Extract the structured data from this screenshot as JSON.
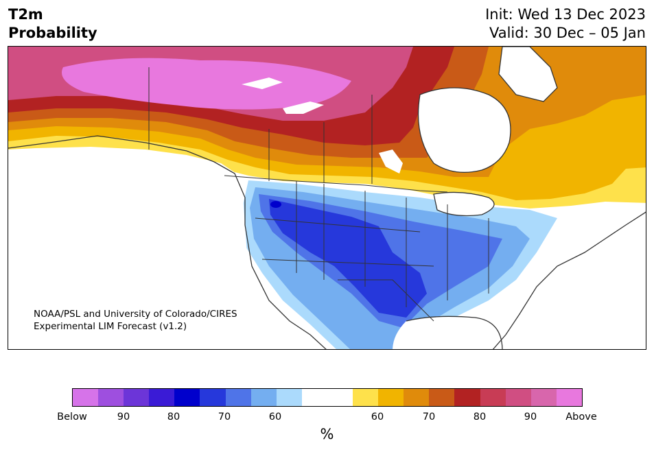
{
  "title": {
    "line1": "T2m",
    "line2": "Probability"
  },
  "dates": {
    "init": "Init: Wed 13 Dec 2023",
    "valid": "Valid: 30 Dec – 05 Jan"
  },
  "credit": {
    "line1": "NOAA/PSL and University of Colorado/CIRES",
    "line2": "Experimental LIM Forecast (v1.2)"
  },
  "colorbar": {
    "colors": [
      "#d673e9",
      "#9e4fdf",
      "#6c35d8",
      "#3a1bd6",
      "#0000cc",
      "#2638db",
      "#4f74e8",
      "#74aef0",
      "#abdafc",
      "#ffffff",
      "#ffffff",
      "#fee14b",
      "#f1b400",
      "#e08b0b",
      "#c95a17",
      "#b22222",
      "#c83c55",
      "#d04e82",
      "#d866ac",
      "#e878de"
    ],
    "tick_labels": [
      "Below",
      "90",
      "80",
      "70",
      "60",
      "60",
      "70",
      "80",
      "90",
      "Above"
    ],
    "unit": "%"
  },
  "legend_colors": {
    "above_high": "#e878de",
    "above_mid": "#d04e82",
    "above_low": "#b22222",
    "warm_weak": "#f1b400",
    "below_weak": "#74aef0",
    "below_mid": "#4f74e8",
    "below_strong": "#2638db"
  }
}
